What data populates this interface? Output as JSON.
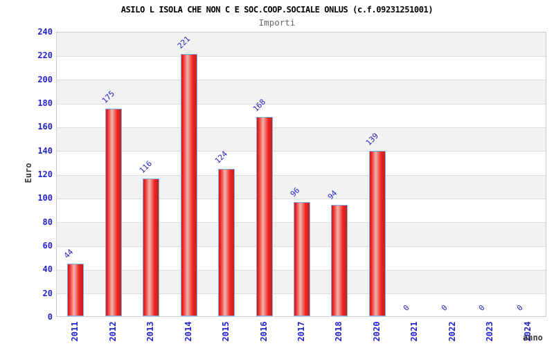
{
  "header": {
    "title": "ASILO L ISOLA CHE NON C E SOC.COOP.SOCIALE ONLUS (c.f.09231251001)",
    "subtitle": "Importi"
  },
  "chart_data": {
    "type": "bar",
    "title": "ASILO L ISOLA CHE NON C E SOC.COOP.SOCIALE ONLUS (c.f.09231251001)",
    "subtitle": "Importi",
    "categories": [
      "2011",
      "2012",
      "2013",
      "2014",
      "2015",
      "2016",
      "2017",
      "2018",
      "2020",
      "2021",
      "2022",
      "2023",
      "2024"
    ],
    "values": [
      44,
      175,
      116,
      221,
      124,
      168,
      96,
      94,
      139,
      0,
      0,
      0,
      0
    ],
    "xlabel": "anno",
    "ylabel": "Euro",
    "ylim": [
      0,
      240
    ],
    "ytick_step": 20,
    "grid": true,
    "legend_position": "none",
    "band_fill": true,
    "colors": {
      "tick_label_blue": "#2222cc",
      "value_label_blue": "#2222bb",
      "bar_red_dark": "#c81e1e",
      "bar_red": "#ee2424",
      "bar_highlight": "#f2b4aa",
      "bar_border": "#7fb2e5",
      "band_gray": "#f2f2f2",
      "band_white": "#ffffff",
      "gridline": "#dcdcdc",
      "axis_title_gray": "#3a3a3a",
      "subtitle_gray": "#666666"
    }
  }
}
